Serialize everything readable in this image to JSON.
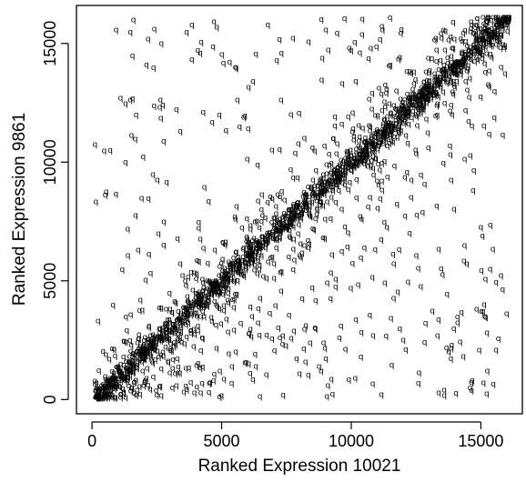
{
  "chart_data": {
    "type": "scatter",
    "title": "",
    "xlabel": "Ranked Expression 10021",
    "ylabel": "Ranked Expression 9861",
    "xlim": [
      -600,
      16600
    ],
    "ylim": [
      -600,
      16600
    ],
    "x_ticks": [
      0,
      5000,
      10000,
      15000
    ],
    "x_tick_labels": [
      "0",
      "5000",
      "10000",
      "15000"
    ],
    "y_ticks": [
      0,
      5000,
      10000,
      15000
    ],
    "y_tick_labels": [
      "0",
      "5000",
      "10000",
      "15000"
    ],
    "grid": false,
    "legend": "none",
    "marker_glyph": "q",
    "marker_color": "#000000",
    "n_points_shown": 16000,
    "description_of_pattern": "dense band along y = x with scattered off-diagonal points, more below the diagonal",
    "sample_points": [
      [
        100,
        100
      ],
      [
        1000,
        1100
      ],
      [
        2500,
        2400
      ],
      [
        4000,
        4100
      ],
      [
        5000,
        5000
      ],
      [
        6500,
        6400
      ],
      [
        8000,
        8100
      ],
      [
        9000,
        9000
      ],
      [
        10500,
        10600
      ],
      [
        12000,
        12000
      ],
      [
        13500,
        13400
      ],
      [
        15000,
        15100
      ],
      [
        16000,
        16000
      ],
      [
        1500,
        15900
      ],
      [
        2000,
        14000
      ],
      [
        1000,
        12600
      ],
      [
        600,
        10400
      ],
      [
        3000,
        400
      ],
      [
        6000,
        1000
      ],
      [
        9000,
        500
      ],
      [
        12000,
        2000
      ],
      [
        15000,
        600
      ]
    ]
  }
}
